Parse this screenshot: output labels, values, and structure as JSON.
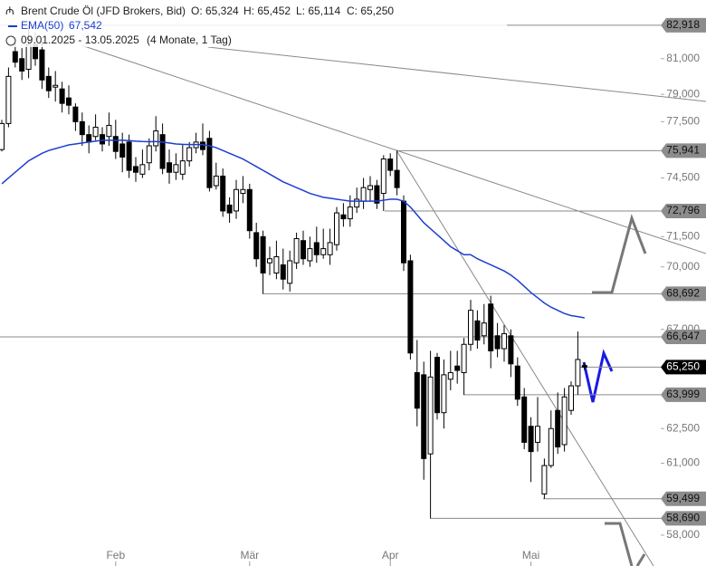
{
  "chart_data": {
    "type": "candlestick",
    "header": {
      "title": "Brent Crude Öl (JFD Brokers, Bid)",
      "ohlc": [
        "O: 65,324",
        "H: 65,452",
        "L: 65,114",
        "C: 65,250"
      ],
      "range": "09.01.2025 - 13.05.2025",
      "period": "(4 Monate, 1 Tag)"
    },
    "categories": [
      null,
      null,
      null,
      null,
      null,
      null,
      null,
      null,
      null,
      null,
      null,
      null,
      null,
      null,
      null,
      null,
      null,
      "Feb",
      null,
      null,
      null,
      null,
      null,
      null,
      null,
      null,
      null,
      null,
      null,
      null,
      null,
      null,
      null,
      null,
      null,
      null,
      null,
      "Mär",
      null,
      null,
      null,
      null,
      null,
      null,
      null,
      null,
      null,
      null,
      null,
      null,
      null,
      null,
      null,
      null,
      null,
      null,
      null,
      null,
      "Apr",
      null,
      null,
      null,
      null,
      null,
      null,
      null,
      null,
      null,
      null,
      null,
      null,
      null,
      null,
      null,
      null,
      null,
      null,
      null,
      null,
      "Mai",
      null,
      null,
      null,
      null,
      null,
      null,
      null,
      null
    ],
    "open": [
      76.0,
      77.4,
      81.4,
      81.0,
      80.4,
      81.8,
      81.5,
      80.0,
      79.4,
      79.3,
      78.8,
      78.3,
      77.5,
      76.8,
      76.7,
      76.8,
      76.7,
      76.7,
      76.3,
      76.4,
      75.1,
      74.7,
      75.3,
      76.2,
      76.8,
      75.3,
      74.8,
      74.7,
      75.4,
      76.1,
      76.4,
      76.6,
      74.1,
      74.6,
      73.1,
      72.8,
      73.7,
      73.9,
      71.7,
      71.5,
      70.2,
      69.7,
      70.1,
      69.2,
      70.2,
      71.3,
      70.3,
      71.2,
      70.6,
      70.6,
      71.1,
      72.6,
      72.4,
      73.0,
      73.3,
      73.9,
      74.1,
      73.7,
      75.5,
      74.9,
      73.3,
      70.3,
      65.0,
      64.9,
      61.4,
      65.7,
      63.2,
      64.7,
      65.3,
      65.0,
      66.3,
      67.4,
      66.7,
      68.2,
      66.7,
      66.1,
      66.7,
      65.3,
      63.9,
      62.6,
      61.9,
      59.7,
      60.9,
      63.3,
      61.8,
      63.3,
      64.4,
      65.324
    ],
    "high": [
      77.6,
      80.5,
      82.2,
      81.6,
      82.918,
      82.5,
      82.0,
      80.5,
      80.3,
      79.7,
      79.5,
      78.5,
      78.0,
      77.3,
      77.9,
      77.2,
      78.0,
      77.6,
      76.9,
      76.8,
      75.6,
      76.0,
      76.6,
      77.8,
      77.4,
      76.0,
      75.8,
      76.3,
      76.4,
      76.9,
      77.4,
      77.0,
      75.3,
      75.0,
      73.5,
      74.4,
      74.6,
      74.2,
      72.2,
      71.8,
      71.0,
      71.3,
      70.9,
      70.8,
      71.7,
      71.8,
      71.5,
      72.0,
      71.9,
      71.9,
      73.0,
      73.2,
      73.6,
      74.0,
      74.5,
      74.6,
      74.4,
      75.7,
      75.8,
      75.941,
      73.6,
      70.6,
      66.5,
      65.5,
      66.0,
      65.9,
      65.6,
      66.0,
      66.0,
      66.6,
      68.4,
      67.9,
      68.2,
      68.6,
      67.3,
      67.2,
      67.0,
      65.7,
      64.3,
      63.0,
      63.9,
      61.2,
      63.3,
      64.1,
      64.3,
      64.6,
      66.9,
      65.452
    ],
    "low": [
      75.9,
      77.2,
      80.5,
      79.8,
      79.9,
      80.6,
      79.3,
      78.8,
      78.6,
      78.0,
      77.9,
      77.0,
      76.2,
      75.8,
      76.5,
      75.9,
      76.2,
      75.5,
      74.8,
      74.5,
      74.3,
      74.5,
      74.9,
      75.9,
      74.7,
      74.2,
      74.4,
      74.4,
      75.1,
      75.8,
      75.7,
      73.8,
      73.9,
      72.5,
      72.2,
      72.4,
      73.2,
      71.4,
      70.0,
      68.692,
      69.6,
      69.4,
      68.9,
      68.8,
      69.9,
      70.1,
      70.0,
      70.2,
      70.4,
      70.1,
      70.8,
      72.0,
      72.0,
      72.7,
      72.9,
      73.3,
      72.9,
      72.796,
      74.6,
      73.6,
      69.8,
      65.6,
      62.6,
      60.3,
      58.69,
      62.9,
      62.5,
      64.2,
      64.5,
      63.999,
      66.0,
      66.1,
      66.3,
      65.2,
      65.7,
      65.5,
      64.8,
      63.5,
      61.6,
      60.2,
      61.5,
      59.499,
      60.8,
      61.4,
      61.5,
      63.1,
      64.0,
      65.114
    ],
    "close": [
      77.4,
      80.0,
      80.8,
      80.3,
      81.8,
      81.0,
      79.8,
      79.2,
      79.5,
      78.5,
      78.4,
      77.5,
      76.8,
      76.4,
      77.2,
      76.3,
      77.3,
      75.9,
      75.6,
      74.9,
      74.8,
      75.2,
      76.2,
      77.0,
      75.0,
      74.8,
      75.2,
      75.4,
      76.1,
      76.4,
      76.0,
      74.0,
      74.6,
      72.8,
      72.7,
      73.9,
      73.9,
      71.8,
      70.4,
      69.7,
      70.4,
      70.5,
      69.4,
      70.3,
      71.4,
      70.4,
      70.9,
      70.6,
      70.9,
      71.2,
      72.7,
      72.4,
      73.0,
      73.4,
      74.0,
      74.1,
      73.2,
      75.5,
      74.9,
      74.0,
      70.2,
      65.9,
      63.4,
      61.2,
      64.8,
      63.2,
      64.9,
      65.0,
      65.1,
      66.3,
      67.9,
      66.5,
      67.3,
      66.0,
      66.1,
      66.8,
      65.4,
      63.8,
      61.9,
      61.5,
      62.6,
      60.9,
      62.5,
      61.7,
      63.9,
      64.4,
      65.6,
      65.25
    ],
    "up_color": "#ffffff",
    "down_color": "#000000",
    "series": [
      {
        "name": "EMA(50)",
        "value_label": "67,542",
        "color": "#1c3fd1",
        "values": [
          74.2,
          74.5,
          74.8,
          75.1,
          75.4,
          75.6,
          75.8,
          75.95,
          76.05,
          76.15,
          76.25,
          76.3,
          76.35,
          76.4,
          76.45,
          76.5,
          76.5,
          76.5,
          76.5,
          76.48,
          76.45,
          76.43,
          76.42,
          76.43,
          76.4,
          76.35,
          76.3,
          76.28,
          76.27,
          76.27,
          76.26,
          76.2,
          76.1,
          75.95,
          75.8,
          75.65,
          75.5,
          75.3,
          75.1,
          74.9,
          74.7,
          74.5,
          74.3,
          74.15,
          74.0,
          73.85,
          73.7,
          73.6,
          73.5,
          73.45,
          73.4,
          73.35,
          73.3,
          73.3,
          73.3,
          73.3,
          73.3,
          73.35,
          73.4,
          73.4,
          73.3,
          73.0,
          72.6,
          72.2,
          71.9,
          71.6,
          71.3,
          71.0,
          70.8,
          70.6,
          70.6,
          70.4,
          70.25,
          70.1,
          69.95,
          69.8,
          69.6,
          69.35,
          69.05,
          68.75,
          68.5,
          68.25,
          68.05,
          67.9,
          67.75,
          67.65,
          67.6,
          67.542
        ]
      }
    ],
    "ylim": [
      56.76,
      84.4
    ],
    "log": true,
    "yticks": [
      {
        "value": 81,
        "label": "81,000"
      },
      {
        "value": 79,
        "label": "79,000"
      },
      {
        "value": 77.5,
        "label": "77,500"
      },
      {
        "value": 74.5,
        "label": "74,500"
      },
      {
        "value": 71.5,
        "label": "71,500"
      },
      {
        "value": 70,
        "label": "70,000"
      },
      {
        "value": 67,
        "label": "67,000"
      },
      {
        "value": 62.5,
        "label": "62,500"
      },
      {
        "value": 61,
        "label": "61,000"
      },
      {
        "value": 58,
        "label": "58,000"
      }
    ],
    "levels": [
      {
        "value": 82.918,
        "label": "82,918"
      },
      {
        "value": 75.941,
        "label": "75,941"
      },
      {
        "value": 72.796,
        "label": "72,796"
      },
      {
        "value": 68.692,
        "label": "68,692"
      },
      {
        "value": 66.647,
        "label": "66,647"
      },
      {
        "value": 63.999,
        "label": "63,999"
      },
      {
        "value": 59.499,
        "label": "59,499"
      },
      {
        "value": 58.69,
        "label": "58,690"
      }
    ],
    "last": {
      "value": 65.25,
      "label": "65,250"
    }
  }
}
